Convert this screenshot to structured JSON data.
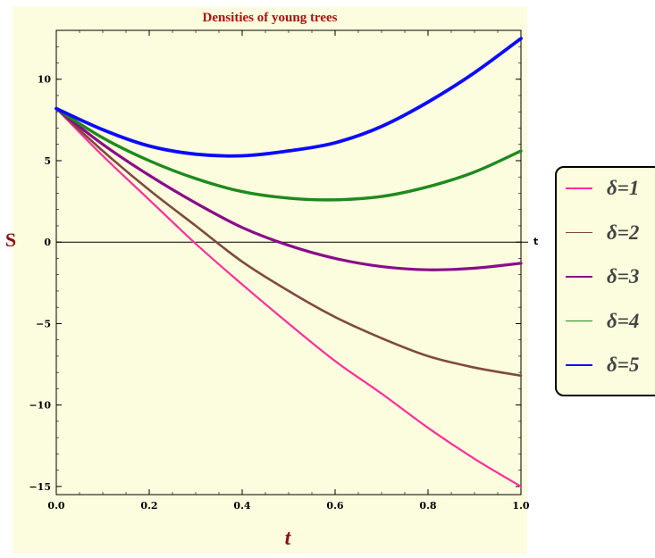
{
  "chart_data": {
    "type": "line",
    "title": "Densities of  young trees",
    "xlabel": "t",
    "ylabel": "S",
    "x_axis_end_label": "t",
    "xlim": [
      0.0,
      1.0
    ],
    "ylim": [
      -15.5,
      13.0
    ],
    "x_ticks": [
      "0.0",
      "0.2",
      "0.4",
      "0.6",
      "0.8",
      "1.0"
    ],
    "y_ticks": [
      "-15",
      "-10",
      "-5",
      "0",
      "5",
      "10"
    ],
    "series": [
      {
        "name": "δ=1",
        "color": "#ff2d9a",
        "x": [
          0.0,
          0.1,
          0.2,
          0.3,
          0.4,
          0.5,
          0.6,
          0.7,
          0.8,
          0.9,
          1.0
        ],
        "values": [
          8.2,
          5.3,
          2.6,
          -0.1,
          -2.6,
          -5.0,
          -7.3,
          -9.3,
          -11.4,
          -13.3,
          -15.0
        ]
      },
      {
        "name": "δ=2",
        "color": "#7f4a3c",
        "x": [
          0.0,
          0.1,
          0.2,
          0.3,
          0.4,
          0.5,
          0.6,
          0.7,
          0.8,
          0.9,
          1.0
        ],
        "values": [
          8.2,
          5.6,
          3.2,
          1.0,
          -1.2,
          -3.0,
          -4.6,
          -5.9,
          -7.0,
          -7.7,
          -8.2
        ]
      },
      {
        "name": "δ=3",
        "color": "#8a0c8a",
        "x": [
          0.0,
          0.1,
          0.2,
          0.3,
          0.4,
          0.5,
          0.6,
          0.7,
          0.8,
          0.9,
          1.0
        ],
        "values": [
          8.2,
          6.0,
          4.1,
          2.4,
          0.9,
          -0.2,
          -1.0,
          -1.5,
          -1.7,
          -1.6,
          -1.3
        ]
      },
      {
        "name": "δ=4",
        "color": "#1e8a1e",
        "x": [
          0.0,
          0.1,
          0.2,
          0.3,
          0.4,
          0.5,
          0.6,
          0.7,
          0.8,
          0.9,
          1.0
        ],
        "values": [
          8.2,
          6.4,
          5.0,
          3.9,
          3.1,
          2.7,
          2.6,
          2.8,
          3.4,
          4.3,
          5.6
        ]
      },
      {
        "name": "δ=5",
        "color": "#0a0aff",
        "x": [
          0.0,
          0.1,
          0.2,
          0.3,
          0.4,
          0.5,
          0.6,
          0.7,
          0.8,
          0.9,
          1.0
        ],
        "values": [
          8.2,
          6.9,
          5.9,
          5.4,
          5.3,
          5.6,
          6.1,
          7.1,
          8.6,
          10.4,
          12.5
        ]
      }
    ],
    "grid": false,
    "legend_position": "right",
    "colors": {
      "background": "#fcfcde",
      "frame": "#000000",
      "zero_line": "#000000"
    }
  }
}
